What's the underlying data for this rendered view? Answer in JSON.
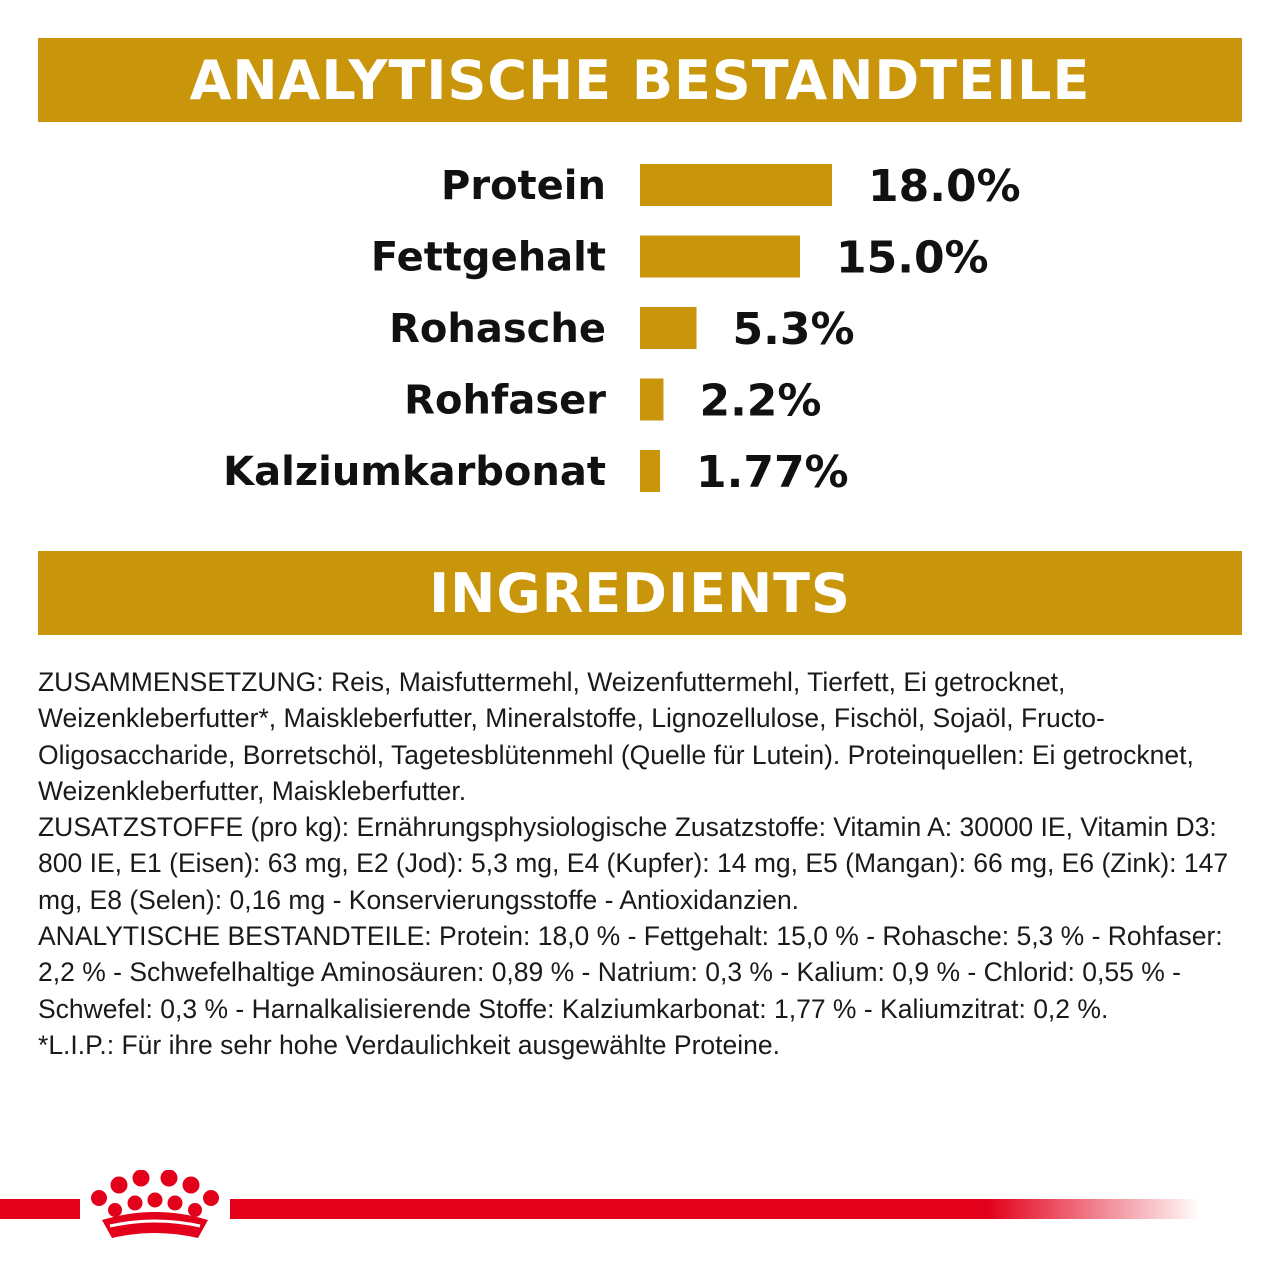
{
  "header": {
    "analytics_title": "ANALYTISCHE BESTANDTEILE",
    "ingredients_title": "INGREDIENTS"
  },
  "colors": {
    "accent_gold": "#C9950A",
    "brand_red": "#E2001A",
    "text": "#111111"
  },
  "chart_data": {
    "type": "bar",
    "orientation": "horizontal",
    "categories": [
      "Protein",
      "Fettgehalt",
      "Rohasche",
      "Rohfaser",
      "Kalziumkarbonat"
    ],
    "values": [
      18.0,
      15.0,
      5.3,
      2.2,
      1.77
    ],
    "labels": [
      "18.0%",
      "15.0%",
      "5.3%",
      "2.2%",
      "1.77%"
    ],
    "unit": "%",
    "xlim": [
      0,
      18
    ],
    "grid": false,
    "legend": "none"
  },
  "ingredients": {
    "paragraphs": [
      "ZUSAMMENSETZUNG: Reis, Maisfuttermehl, Weizenfuttermehl, Tierfett, Ei getrocknet, Weizenkleberfutter*, Maiskleberfutter, Mineralstoffe, Lignozellulose, Fischöl, Sojaöl, Fructo-Oligosaccharide, Borretschöl, Tagetesblütenmehl (Quelle für Lutein). Proteinquellen: Ei getrocknet, Weizenkleberfutter, Maiskleberfutter.",
      "ZUSATZSTOFFE (pro kg): Ernährungsphysiologische Zusatzstoffe: Vitamin A: 30000 IE, Vitamin D3: 800 IE, E1 (Eisen): 63 mg, E2 (Jod): 5,3 mg, E4 (Kupfer): 14 mg, E5 (Mangan): 66 mg, E6 (Zink): 147 mg, E8 (Selen): 0,16 mg - Konservierungsstoffe - Antioxidanzien.",
      "ANALYTISCHE BESTANDTEILE: Protein: 18,0 % - Fettgehalt: 15,0 % - Rohasche: 5,3 % - Rohfaser: 2,2 % - Schwefelhaltige Aminosäuren: 0,89 % - Natrium: 0,3 % - Kalium: 0,9 % - Chlorid: 0,55 % - Schwefel: 0,3 % - Harnalkalisierende Stoffe: Kalziumkarbonat: 1,77 % - Kaliumzitrat: 0,2 %.",
      "*L.I.P.: Für ihre sehr hohe Verdaulichkeit ausgewählte Proteine."
    ]
  },
  "footer": {
    "logo_icon": "crown-icon"
  }
}
